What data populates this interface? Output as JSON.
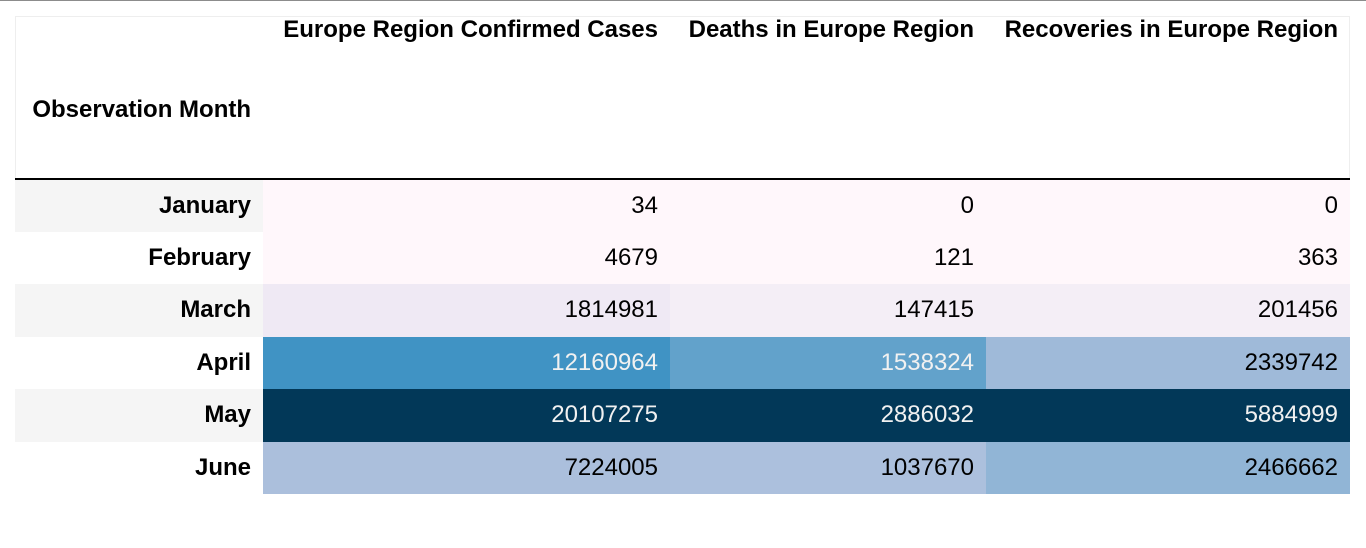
{
  "chart_data": {
    "type": "table",
    "index_name": "Observation Month",
    "columns": [
      "Europe Region Confirmed Cases",
      "Deaths in Europe Region",
      "Recoveries in Europe Region"
    ],
    "rows": [
      {
        "month": "January",
        "values": [
          34,
          0,
          0
        ]
      },
      {
        "month": "February",
        "values": [
          4679,
          121,
          363
        ]
      },
      {
        "month": "March",
        "values": [
          1814981,
          147415,
          201456
        ]
      },
      {
        "month": "April",
        "values": [
          12160964,
          1538324,
          2339742
        ]
      },
      {
        "month": "May",
        "values": [
          20107275,
          2886032,
          5884999
        ]
      },
      {
        "month": "June",
        "values": [
          7224005,
          1037670,
          2466662
        ]
      }
    ],
    "cell_colors": [
      [
        "#fff7fb",
        "#fff7fb",
        "#fff7fb"
      ],
      [
        "#fff7fb",
        "#fff7fb",
        "#fff7fb"
      ],
      [
        "#efe9f4",
        "#f4eef6",
        "#f4eef6"
      ],
      [
        "#4093c4",
        "#62a2cb",
        "#9fbad9"
      ],
      [
        "#023858",
        "#023858",
        "#023858"
      ],
      [
        "#abbfdc",
        "#acc0dd",
        "#91b5d6"
      ]
    ],
    "text_colors": [
      [
        "#000000",
        "#000000",
        "#000000"
      ],
      [
        "#000000",
        "#000000",
        "#000000"
      ],
      [
        "#000000",
        "#000000",
        "#000000"
      ],
      [
        "#f1f1f1",
        "#f1f1f1",
        "#000000"
      ],
      [
        "#f1f1f1",
        "#f1f1f1",
        "#f1f1f1"
      ],
      [
        "#000000",
        "#000000",
        "#000000"
      ]
    ],
    "colormap": "PuBu"
  }
}
